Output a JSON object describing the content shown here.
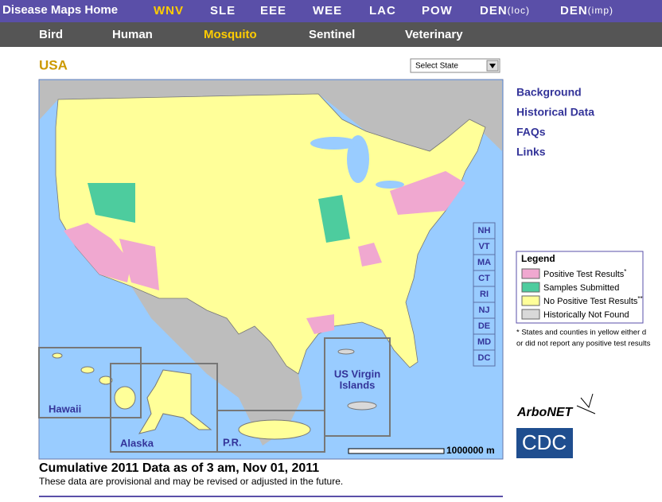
{
  "top_nav": {
    "home": "Disease Maps Home",
    "items": [
      {
        "label": "WNV"
      },
      {
        "label": "SLE"
      },
      {
        "label": "EEE"
      },
      {
        "label": "WEE"
      },
      {
        "label": "LAC"
      },
      {
        "label": "POW"
      },
      {
        "label": "DEN",
        "qualifier": "(loc)"
      },
      {
        "label": "DEN",
        "qualifier": "(imp)"
      }
    ]
  },
  "sub_nav": {
    "items": [
      "Bird",
      "Human",
      "Mosquito",
      "Sentinel",
      "Veterinary"
    ]
  },
  "region_title": "USA",
  "state_select": "Select State",
  "map": {
    "small_states": [
      "NH",
      "VT",
      "MA",
      "CT",
      "RI",
      "NJ",
      "DE",
      "MD",
      "DC"
    ],
    "insets": {
      "hawaii": "Hawaii",
      "alaska": "Alaska",
      "puerto_rico": "P.R.",
      "virgin_islands": [
        "US Virgin",
        "Islands"
      ]
    },
    "scale": "1000000 m"
  },
  "sidebar": {
    "links": [
      "Background",
      "Historical Data",
      "FAQs",
      "Links"
    ]
  },
  "legend": {
    "title": "Legend",
    "items": [
      {
        "label": "Positive Test Results",
        "mark": "*",
        "color": "#f0a8d0"
      },
      {
        "label": "Samples Submitted",
        "color": "#4dcc9e"
      },
      {
        "label": "No Positive Test Results",
        "mark": "**",
        "color": "#ffff99"
      },
      {
        "label": "Historically Not Found",
        "color": "#d9d9d9"
      }
    ]
  },
  "footnote": [
    "* States and counties in yellow either d",
    "or did not report any positive test results"
  ],
  "logos": {
    "arbonet": "ArboNET",
    "cdc": "CDC"
  },
  "caption": {
    "title": "Cumulative 2011 Data as of 3 am, Nov 01, 2011",
    "note": "These data are provisional and may be revised or adjusted in the future."
  }
}
